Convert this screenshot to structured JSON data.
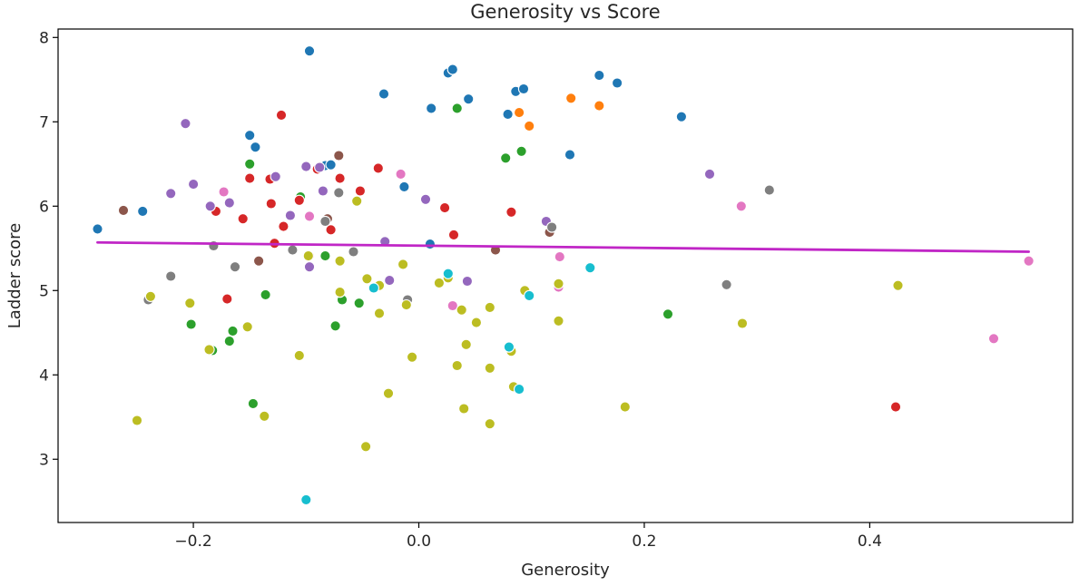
{
  "chart_data": {
    "type": "scatter",
    "title": "Generosity vs Score",
    "xlabel": "Generosity",
    "ylabel": "Ladder score",
    "xlim": [
      -0.32,
      0.58
    ],
    "ylim": [
      2.25,
      8.1
    ],
    "xticks": [
      -0.2,
      0.0,
      0.2,
      0.4
    ],
    "xtick_labels": [
      "−0.2",
      "0.0",
      "0.2",
      "0.4"
    ],
    "yticks": [
      3,
      4,
      5,
      6,
      7,
      8
    ],
    "ytick_labels": [
      "3",
      "4",
      "5",
      "6",
      "7",
      "8"
    ],
    "grid": false,
    "legend": "none",
    "trend_line": {
      "x": [
        -0.285,
        0.541
      ],
      "y": [
        5.57,
        5.46
      ],
      "color": "#c026c6"
    },
    "series": [
      {
        "color": "#1f77b4",
        "points": [
          [
            -0.285,
            5.73
          ],
          [
            -0.245,
            5.94
          ],
          [
            -0.15,
            6.84
          ],
          [
            -0.145,
            6.7
          ],
          [
            -0.097,
            7.84
          ],
          [
            -0.083,
            6.48
          ],
          [
            -0.078,
            6.49
          ],
          [
            -0.031,
            7.33
          ],
          [
            -0.013,
            6.23
          ],
          [
            0.011,
            7.16
          ],
          [
            0.01,
            5.55
          ],
          [
            0.026,
            7.58
          ],
          [
            0.03,
            7.62
          ],
          [
            0.044,
            7.27
          ],
          [
            0.079,
            7.09
          ],
          [
            0.086,
            7.36
          ],
          [
            0.093,
            7.39
          ],
          [
            0.134,
            6.61
          ],
          [
            0.16,
            7.55
          ],
          [
            0.176,
            7.46
          ],
          [
            0.233,
            7.06
          ]
        ]
      },
      {
        "color": "#ff7f0e",
        "points": [
          [
            0.089,
            7.11
          ],
          [
            0.098,
            6.95
          ],
          [
            0.135,
            7.28
          ],
          [
            0.16,
            7.19
          ]
        ]
      },
      {
        "color": "#2ca02c",
        "points": [
          [
            -0.202,
            4.6
          ],
          [
            -0.183,
            4.29
          ],
          [
            -0.165,
            4.52
          ],
          [
            -0.168,
            4.4
          ],
          [
            -0.15,
            6.5
          ],
          [
            -0.147,
            3.66
          ],
          [
            -0.136,
            4.95
          ],
          [
            -0.105,
            6.11
          ],
          [
            -0.083,
            5.41
          ],
          [
            -0.074,
            4.58
          ],
          [
            -0.068,
            4.89
          ],
          [
            -0.053,
            4.85
          ],
          [
            0.034,
            7.16
          ],
          [
            0.077,
            6.57
          ],
          [
            0.091,
            6.65
          ],
          [
            0.221,
            4.72
          ]
        ]
      },
      {
        "color": "#d62728",
        "points": [
          [
            -0.18,
            5.94
          ],
          [
            -0.156,
            5.85
          ],
          [
            -0.17,
            4.9
          ],
          [
            -0.15,
            6.33
          ],
          [
            -0.132,
            6.32
          ],
          [
            -0.131,
            6.03
          ],
          [
            -0.128,
            5.56
          ],
          [
            -0.122,
            7.08
          ],
          [
            -0.12,
            5.76
          ],
          [
            -0.106,
            6.07
          ],
          [
            -0.09,
            6.44
          ],
          [
            -0.078,
            5.72
          ],
          [
            -0.07,
            6.33
          ],
          [
            -0.052,
            6.18
          ],
          [
            -0.036,
            6.45
          ],
          [
            0.023,
            5.98
          ],
          [
            0.031,
            5.66
          ],
          [
            0.082,
            5.93
          ],
          [
            0.423,
            3.62
          ]
        ]
      },
      {
        "color": "#9467bd",
        "points": [
          [
            -0.207,
            6.98
          ],
          [
            -0.2,
            6.26
          ],
          [
            -0.22,
            6.15
          ],
          [
            -0.185,
            6.0
          ],
          [
            -0.173,
            6.18
          ],
          [
            -0.168,
            6.04
          ],
          [
            -0.127,
            6.35
          ],
          [
            -0.114,
            5.89
          ],
          [
            -0.097,
            5.28
          ],
          [
            -0.1,
            6.47
          ],
          [
            -0.088,
            6.46
          ],
          [
            -0.085,
            6.18
          ],
          [
            -0.03,
            5.58
          ],
          [
            -0.026,
            5.12
          ],
          [
            0.006,
            6.08
          ],
          [
            0.043,
            5.11
          ],
          [
            0.113,
            5.82
          ],
          [
            0.258,
            6.38
          ]
        ]
      },
      {
        "color": "#8c564b",
        "points": [
          [
            -0.262,
            5.95
          ],
          [
            -0.142,
            5.35
          ],
          [
            -0.081,
            5.85
          ],
          [
            -0.071,
            6.6
          ],
          [
            0.068,
            5.48
          ],
          [
            0.116,
            5.69
          ]
        ]
      },
      {
        "color": "#e377c2",
        "points": [
          [
            -0.173,
            6.17
          ],
          [
            -0.097,
            5.88
          ],
          [
            -0.097,
            5.41
          ],
          [
            -0.016,
            6.38
          ],
          [
            0.03,
            4.82
          ],
          [
            0.125,
            5.4
          ],
          [
            0.124,
            5.04
          ],
          [
            0.286,
            6.0
          ],
          [
            0.51,
            4.43
          ],
          [
            0.541,
            5.35
          ]
        ]
      },
      {
        "color": "#7f7f7f",
        "points": [
          [
            -0.24,
            4.89
          ],
          [
            -0.22,
            5.17
          ],
          [
            -0.182,
            5.53
          ],
          [
            -0.163,
            5.28
          ],
          [
            -0.112,
            5.48
          ],
          [
            -0.071,
            6.16
          ],
          [
            -0.058,
            5.46
          ],
          [
            -0.083,
            5.82
          ],
          [
            -0.01,
            4.89
          ],
          [
            0.118,
            5.75
          ],
          [
            0.273,
            5.07
          ],
          [
            0.311,
            6.19
          ]
        ]
      },
      {
        "color": "#bcbd22",
        "points": [
          [
            -0.238,
            4.93
          ],
          [
            -0.25,
            3.46
          ],
          [
            -0.203,
            4.85
          ],
          [
            -0.186,
            4.3
          ],
          [
            -0.152,
            4.57
          ],
          [
            -0.137,
            3.51
          ],
          [
            -0.106,
            4.23
          ],
          [
            -0.098,
            5.41
          ],
          [
            -0.07,
            5.35
          ],
          [
            -0.07,
            4.98
          ],
          [
            -0.055,
            6.06
          ],
          [
            -0.046,
            5.14
          ],
          [
            -0.047,
            3.15
          ],
          [
            -0.035,
            4.73
          ],
          [
            -0.035,
            5.06
          ],
          [
            -0.027,
            3.78
          ],
          [
            -0.014,
            5.31
          ],
          [
            -0.006,
            4.21
          ],
          [
            -0.011,
            4.83
          ],
          [
            0.018,
            5.09
          ],
          [
            0.026,
            5.15
          ],
          [
            0.034,
            4.11
          ],
          [
            0.038,
            4.77
          ],
          [
            0.04,
            3.6
          ],
          [
            0.042,
            4.36
          ],
          [
            0.051,
            4.62
          ],
          [
            0.063,
            3.42
          ],
          [
            0.063,
            4.8
          ],
          [
            0.063,
            4.08
          ],
          [
            0.08,
            4.32
          ],
          [
            0.082,
            4.28
          ],
          [
            0.084,
            3.86
          ],
          [
            0.094,
            5.0
          ],
          [
            0.124,
            5.08
          ],
          [
            0.124,
            4.64
          ],
          [
            0.183,
            3.62
          ],
          [
            0.287,
            4.61
          ],
          [
            0.425,
            5.06
          ]
        ]
      },
      {
        "color": "#17becf",
        "points": [
          [
            -0.1,
            2.52
          ],
          [
            -0.04,
            5.03
          ],
          [
            0.026,
            5.2
          ],
          [
            0.08,
            4.33
          ],
          [
            0.089,
            3.83
          ],
          [
            0.098,
            4.94
          ],
          [
            0.152,
            5.27
          ]
        ]
      }
    ]
  }
}
